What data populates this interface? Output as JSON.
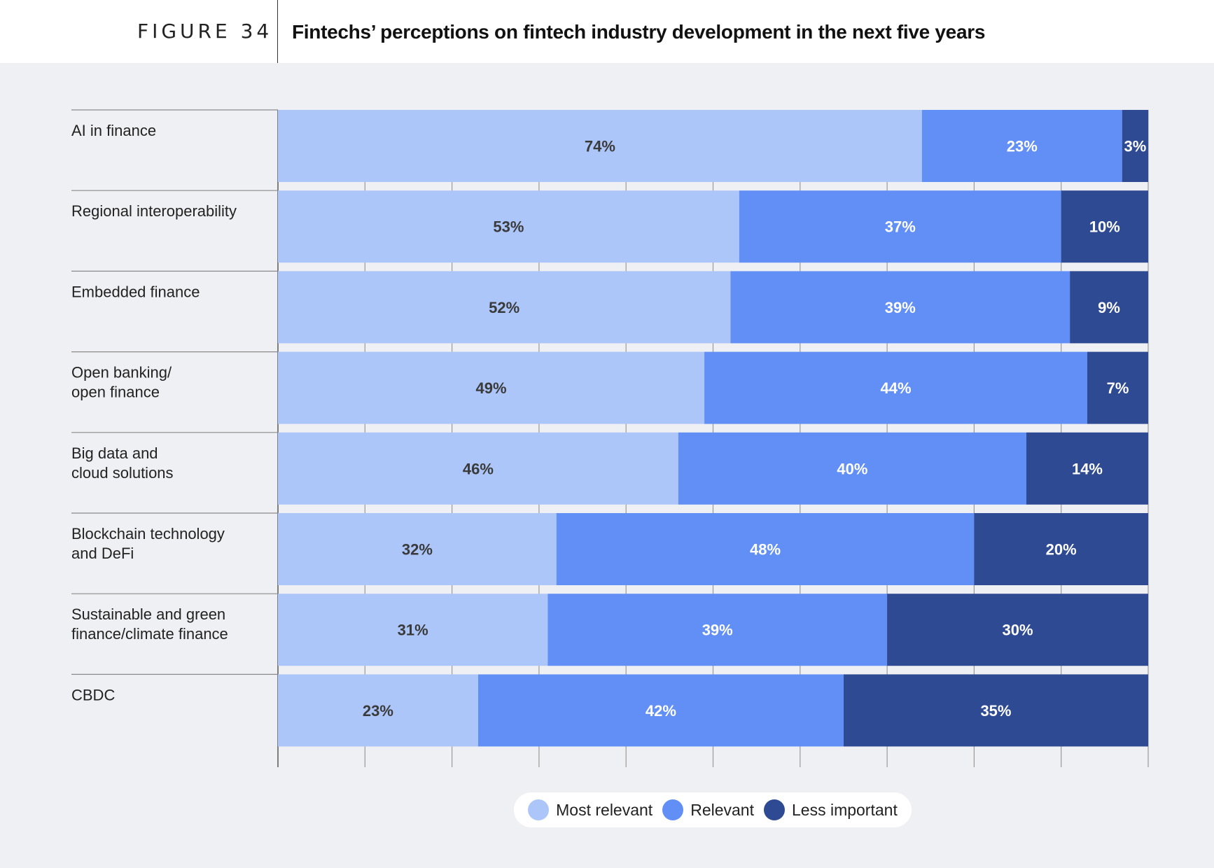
{
  "figure": {
    "label": "FIGURE 34",
    "title": "Fintechs’ perceptions on fintech industry development in the next five years"
  },
  "colors": {
    "most_relevant": "#adc6f9",
    "relevant": "#628ff5",
    "less_important": "#2e4a93",
    "background": "#eff0f4"
  },
  "chart_data": {
    "type": "bar",
    "orientation": "horizontal",
    "stacked": true,
    "categories": [
      [
        "AI in finance"
      ],
      [
        "Regional interoperability"
      ],
      [
        "Embedded finance"
      ],
      [
        "Open banking/",
        "open finance"
      ],
      [
        "Big data and",
        "cloud solutions"
      ],
      [
        "Blockchain technology",
        "and DeFi"
      ],
      [
        "Sustainable and green",
        "finance/climate finance"
      ],
      [
        "CBDC"
      ]
    ],
    "series": [
      {
        "name": "Most relevant",
        "color": "#adc6f9",
        "label_color": "#3a3a3a",
        "values": [
          74,
          53,
          52,
          49,
          46,
          32,
          31,
          23
        ]
      },
      {
        "name": "Relevant",
        "color": "#628ff5",
        "label_color": "#ffffff",
        "values": [
          23,
          37,
          39,
          44,
          40,
          48,
          39,
          42
        ]
      },
      {
        "name": "Less important",
        "color": "#2e4a93",
        "label_color": "#ffffff",
        "values": [
          3,
          10,
          9,
          7,
          14,
          20,
          30,
          35
        ]
      }
    ],
    "value_suffix": "%",
    "xlim": [
      0,
      100
    ],
    "grid": true,
    "legend_position": "bottom-center"
  }
}
